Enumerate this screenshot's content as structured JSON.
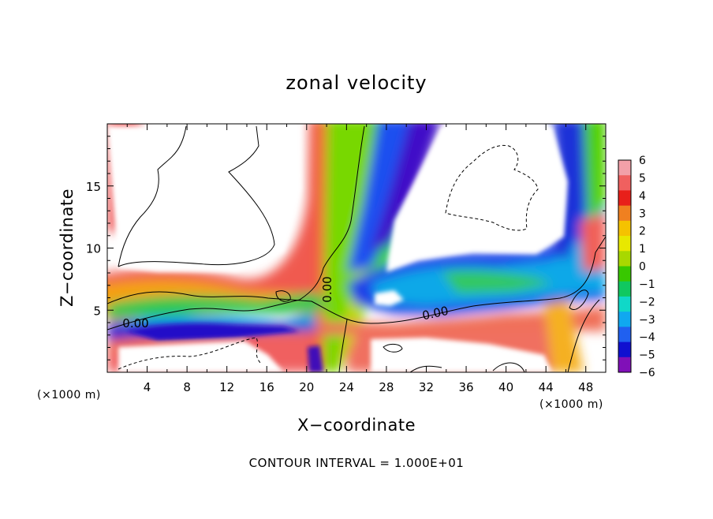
{
  "chart_data": {
    "type": "heatmap",
    "title": "zonal velocity",
    "xlabel": "X−coordinate",
    "ylabel": "Z−coordinate",
    "x_unit": "(×1000 m)",
    "y_unit": "(×1000 m)",
    "xlim": [
      0,
      50
    ],
    "ylim": [
      0,
      20
    ],
    "x_ticks": [
      4,
      8,
      12,
      16,
      20,
      24,
      28,
      32,
      36,
      40,
      44,
      48
    ],
    "y_ticks": [
      5,
      10,
      15
    ],
    "colorbar": {
      "ticks": [
        6,
        5,
        4,
        3,
        2,
        1,
        0,
        -1,
        -2,
        -3,
        -4,
        -5,
        -6
      ],
      "labels": [
        "6",
        "5",
        "4",
        "3",
        "2",
        "1",
        "0",
        "−1",
        "−2",
        "−3",
        "−4",
        "−5",
        "−6"
      ],
      "colors": [
        "#f2a0a8",
        "#f0605f",
        "#e8201a",
        "#f08020",
        "#f5c200",
        "#e8e800",
        "#a8d800",
        "#38c800",
        "#10c860",
        "#10d8c8",
        "#10a8f0",
        "#2060f0",
        "#1010d0",
        "#8010b8"
      ]
    },
    "contour_labels": [
      "0.00",
      "0.00",
      "0.00"
    ],
    "contour_interval_text": "CONTOUR INTERVAL = 1.000E+01",
    "grid": false,
    "features": [
      {
        "name": "lower shear layer",
        "sign": "negative",
        "z_range": [
          2,
          5
        ]
      },
      {
        "name": "upper positive layer",
        "sign": "positive",
        "z_range": [
          5,
          7
        ]
      },
      {
        "name": "central column",
        "x_range": [
          20,
          28
        ],
        "z_range": [
          0,
          20
        ]
      },
      {
        "name": "eastern jet",
        "sign": "negative",
        "x_range": [
          30,
          48
        ],
        "z_range": [
          5,
          9
        ]
      }
    ]
  }
}
